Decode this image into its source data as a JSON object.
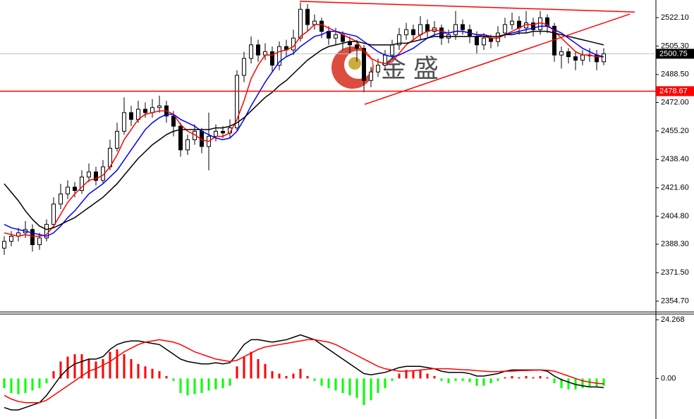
{
  "chart_data": [
    {
      "type": "candlestick",
      "open": [
        2386,
        2390,
        2393,
        2395,
        2397,
        2388,
        2392,
        2400,
        2412,
        2418,
        2422,
        2420,
        2428,
        2431,
        2426,
        2434,
        2445,
        2455,
        2466,
        2462,
        2468,
        2466,
        2469,
        2470,
        2464,
        2458,
        2444,
        2450,
        2455,
        2446,
        2452,
        2455,
        2454,
        2457,
        2488,
        2498,
        2506,
        2500,
        2502,
        2494,
        2505,
        2503,
        2510,
        2527,
        2518,
        2520,
        2514,
        2510,
        2512,
        2508,
        2506,
        2504,
        2485,
        2490,
        2494,
        2500,
        2506,
        2512,
        2515,
        2512,
        2518,
        2514,
        2516,
        2510,
        2512,
        2518,
        2515,
        2511,
        2506,
        2510,
        2508,
        2513,
        2518,
        2520,
        2516,
        2519,
        2515,
        2522,
        2517,
        2500,
        2502,
        2499,
        2497,
        2500,
        2500,
        2496
      ],
      "high": [
        2393,
        2396,
        2398,
        2402,
        2400,
        2395,
        2403,
        2416,
        2424,
        2426,
        2425,
        2432,
        2436,
        2434,
        2438,
        2450,
        2460,
        2475,
        2470,
        2473,
        2472,
        2474,
        2476,
        2473,
        2467,
        2460,
        2453,
        2459,
        2457,
        2466,
        2459,
        2458,
        2462,
        2491,
        2502,
        2511,
        2509,
        2507,
        2505,
        2508,
        2509,
        2515,
        2531,
        2530,
        2524,
        2522,
        2517,
        2516,
        2514,
        2511,
        2509,
        2506,
        2493,
        2498,
        2503,
        2509,
        2516,
        2519,
        2518,
        2523,
        2521,
        2520,
        2518,
        2515,
        2526,
        2521,
        2518,
        2514,
        2513,
        2512,
        2517,
        2522,
        2525,
        2523,
        2526,
        2522,
        2526,
        2524,
        2519,
        2505,
        2504,
        2502,
        2503,
        2504,
        2503,
        2504
      ],
      "low": [
        2382,
        2387,
        2390,
        2392,
        2384,
        2385,
        2390,
        2398,
        2409,
        2415,
        2416,
        2418,
        2425,
        2423,
        2424,
        2432,
        2443,
        2453,
        2458,
        2460,
        2463,
        2463,
        2466,
        2460,
        2452,
        2440,
        2441,
        2447,
        2442,
        2432,
        2449,
        2451,
        2451,
        2455,
        2484,
        2495,
        2496,
        2497,
        2490,
        2491,
        2499,
        2500,
        2508,
        2514,
        2515,
        2510,
        2506,
        2506,
        2503,
        2501,
        2496,
        2478,
        2481,
        2487,
        2491,
        2497,
        2503,
        2509,
        2508,
        2509,
        2510,
        2511,
        2506,
        2507,
        2509,
        2512,
        2507,
        2501,
        2503,
        2504,
        2505,
        2510,
        2515,
        2512,
        2513,
        2511,
        2512,
        2513,
        2496,
        2492,
        2495,
        2491,
        2494,
        2496,
        2491,
        2494
      ],
      "close": [
        2390,
        2393,
        2395,
        2397,
        2388,
        2392,
        2400,
        2412,
        2418,
        2422,
        2420,
        2428,
        2431,
        2426,
        2434,
        2445,
        2455,
        2466,
        2462,
        2468,
        2466,
        2469,
        2470,
        2464,
        2458,
        2444,
        2450,
        2455,
        2446,
        2452,
        2455,
        2454,
        2457,
        2488,
        2498,
        2506,
        2500,
        2502,
        2494,
        2505,
        2503,
        2510,
        2527,
        2518,
        2520,
        2514,
        2510,
        2512,
        2508,
        2506,
        2504,
        2485,
        2490,
        2494,
        2500,
        2506,
        2512,
        2515,
        2512,
        2518,
        2514,
        2516,
        2510,
        2512,
        2518,
        2515,
        2511,
        2506,
        2510,
        2508,
        2513,
        2518,
        2520,
        2516,
        2519,
        2515,
        2522,
        2517,
        2500,
        2502,
        2499,
        2497,
        2500,
        2500,
        2496,
        2500.75
      ],
      "series": [
        {
          "color": "#ff0000",
          "values": [
            2395,
            2394,
            2393,
            2394,
            2393,
            2393,
            2394,
            2399,
            2406,
            2413,
            2418,
            2422,
            2426,
            2427,
            2429,
            2434,
            2441,
            2450,
            2456,
            2462,
            2465,
            2466,
            2467,
            2467,
            2465,
            2459,
            2455,
            2453,
            2450,
            2449,
            2452,
            2452,
            2454,
            2462,
            2473,
            2486,
            2494,
            2500,
            2500,
            2502,
            2503,
            2505,
            2511,
            2514,
            2518,
            2518,
            2516,
            2514,
            2512,
            2510,
            2508,
            2502,
            2498,
            2496,
            2495,
            2496,
            2501,
            2506,
            2509,
            2512,
            2514,
            2515,
            2514,
            2513,
            2514,
            2514,
            2513,
            2512,
            2511,
            2510,
            2510,
            2512,
            2514,
            2516,
            2518,
            2518,
            2519,
            2518,
            2514,
            2510,
            2506,
            2502,
            2500,
            2500,
            2499,
            2499
          ]
        },
        {
          "color": "#0000ff",
          "values": [
            2400,
            2398,
            2397,
            2396,
            2395,
            2394,
            2393,
            2395,
            2399,
            2404,
            2408,
            2413,
            2418,
            2421,
            2424,
            2428,
            2432,
            2438,
            2444,
            2450,
            2456,
            2460,
            2463,
            2465,
            2465,
            2462,
            2460,
            2458,
            2455,
            2453,
            2451,
            2450,
            2451,
            2455,
            2462,
            2470,
            2477,
            2484,
            2490,
            2496,
            2499,
            2501,
            2505,
            2508,
            2511,
            2512,
            2514,
            2514,
            2513,
            2512,
            2511,
            2508,
            2505,
            2502,
            2500,
            2499,
            2500,
            2502,
            2504,
            2507,
            2510,
            2512,
            2513,
            2513,
            2514,
            2514,
            2513,
            2512,
            2512,
            2511,
            2511,
            2512,
            2513,
            2514,
            2515,
            2516,
            2517,
            2517,
            2515,
            2513,
            2510,
            2507,
            2504,
            2502,
            2500,
            2499
          ]
        },
        {
          "color": "#000000",
          "values": [
            2424,
            2419,
            2414,
            2408,
            2403,
            2399,
            2397,
            2398,
            2400,
            2402,
            2404,
            2407,
            2410,
            2413,
            2416,
            2420,
            2424,
            2429,
            2434,
            2439,
            2443,
            2447,
            2450,
            2453,
            2455,
            2456,
            2456,
            2456,
            2456,
            2456,
            2457,
            2457,
            2458,
            2460,
            2463,
            2467,
            2471,
            2475,
            2478,
            2482,
            2485,
            2489,
            2493,
            2497,
            2500,
            2503,
            2505,
            2506,
            2507,
            2508,
            2508,
            2507,
            2506,
            2506,
            2506,
            2506,
            2507,
            2507,
            2508,
            2509,
            2510,
            2511,
            2511,
            2511,
            2511,
            2511,
            2511,
            2511,
            2511,
            2511,
            2511,
            2512,
            2512,
            2513,
            2513,
            2514,
            2514,
            2514,
            2513,
            2512,
            2511,
            2510,
            2509,
            2508,
            2507,
            2506
          ]
        }
      ],
      "up_color": "#ffffff",
      "down_color": "#000000",
      "ylim": [
        2348.3,
        2532.5
      ],
      "yticks": [
        {
          "value": 2522.1,
          "label": "2522.10"
        },
        {
          "value": 2505.3,
          "label": "2505.30"
        },
        {
          "value": 2488.5,
          "label": "2488.50"
        },
        {
          "value": 2472,
          "label": "2472.00"
        },
        {
          "value": 2455.2,
          "label": "2455.20"
        },
        {
          "value": 2438.4,
          "label": "2438.40"
        },
        {
          "value": 2421.6,
          "label": "2421.60"
        },
        {
          "value": 2404.8,
          "label": "2404.80"
        },
        {
          "value": 2388.3,
          "label": "2388.30"
        },
        {
          "value": 2371.5,
          "label": "2371.50"
        },
        {
          "value": 2354.7,
          "label": "2354.70"
        }
      ],
      "level": {
        "value": 2478.67,
        "label": "2478.67",
        "color": "#ff0000"
      },
      "last_price": {
        "value": 2500.75,
        "label": "2500.75"
      },
      "trendlines": [
        {
          "color": "#ff0000",
          "points": [
            [
              41.9,
              2531.7
            ],
            [
              89.4,
              2525.4
            ]
          ]
        },
        {
          "color": "#ff0000",
          "points": [
            [
              51.1,
              2470.9
            ],
            [
              88.7,
              2524.2
            ]
          ]
        }
      ],
      "watermark": "金 盛"
    },
    {
      "type": "macd",
      "histogram": [
        -4,
        -6,
        -6.5,
        -6,
        -5,
        -4,
        -2,
        3,
        7,
        9,
        10,
        10,
        8,
        7,
        8,
        11,
        12,
        10,
        8,
        6,
        5,
        4,
        3,
        1,
        -1,
        -6,
        -7,
        -6.5,
        -6,
        -5,
        -4.5,
        -4,
        -3,
        5,
        9,
        11,
        8,
        6,
        3,
        2,
        1,
        2,
        4,
        1,
        -1,
        -3,
        -4,
        -5,
        -6,
        -7,
        -8,
        -11,
        -9,
        -6,
        -4,
        -1,
        2,
        3.5,
        3,
        3.5,
        2,
        1,
        -1,
        -2,
        -1,
        -1,
        -1.5,
        -3,
        -3,
        -2,
        -1,
        0.5,
        1,
        0.5,
        1,
        0.5,
        1,
        0.5,
        -2,
        -4,
        -4.5,
        -4.5,
        -4,
        -3.5,
        -3.5,
        -3
      ],
      "up_color": "#ff0000",
      "down_color": "#00ff00",
      "series": [
        {
          "color": "#000000",
          "values": [
            -12,
            -13,
            -13,
            -12,
            -11,
            -10,
            -7,
            -3,
            1,
            4,
            6,
            7,
            8,
            8,
            9,
            12,
            14,
            15,
            15.5,
            15.5,
            15,
            14.5,
            14,
            12,
            10,
            8,
            7,
            6.5,
            6,
            6,
            6.5,
            6,
            6.5,
            10,
            14,
            16,
            16,
            15.5,
            15,
            15.5,
            16,
            17,
            18,
            17,
            16,
            14,
            12,
            10,
            8,
            6,
            4,
            2,
            1.5,
            2,
            2.5,
            3.5,
            4.5,
            5,
            5,
            5,
            4.5,
            4,
            3,
            2.5,
            2.5,
            2.5,
            2,
            1,
            1,
            1.5,
            2,
            3,
            3.5,
            3.5,
            3.5,
            3.5,
            3.5,
            3,
            1,
            -0.5,
            -1.5,
            -2.5,
            -3,
            -3.5,
            -3.5,
            -3.8
          ]
        },
        {
          "color": "#ff0000",
          "values": [
            -7,
            -8.5,
            -9.5,
            -10,
            -10,
            -10,
            -9,
            -7,
            -5,
            -3,
            -1,
            1,
            3,
            4,
            5.5,
            7,
            9,
            11,
            12.5,
            14,
            15,
            15.5,
            16,
            15.5,
            15,
            14,
            12.5,
            11,
            10,
            9,
            8,
            7.5,
            7,
            7.5,
            9,
            10.5,
            12,
            13,
            13.5,
            14,
            14.5,
            15,
            15.5,
            16,
            16,
            15.5,
            15,
            14,
            12.5,
            11,
            9.5,
            8,
            6.5,
            5,
            4,
            3.5,
            3,
            3,
            3.2,
            3.5,
            3.8,
            4,
            4,
            4,
            3.8,
            3.6,
            3.5,
            3.2,
            3,
            2.8,
            2.8,
            3,
            3,
            3.2,
            3.3,
            3.4,
            3.5,
            3.4,
            3,
            2,
            1,
            0,
            -1,
            -1.5,
            -2,
            -2.2
          ]
        }
      ],
      "ylim": [
        -15.3,
        26.6
      ],
      "yticks": [
        24.268,
        {
          "value": 0,
          "label": "0.00"
        }
      ]
    }
  ]
}
